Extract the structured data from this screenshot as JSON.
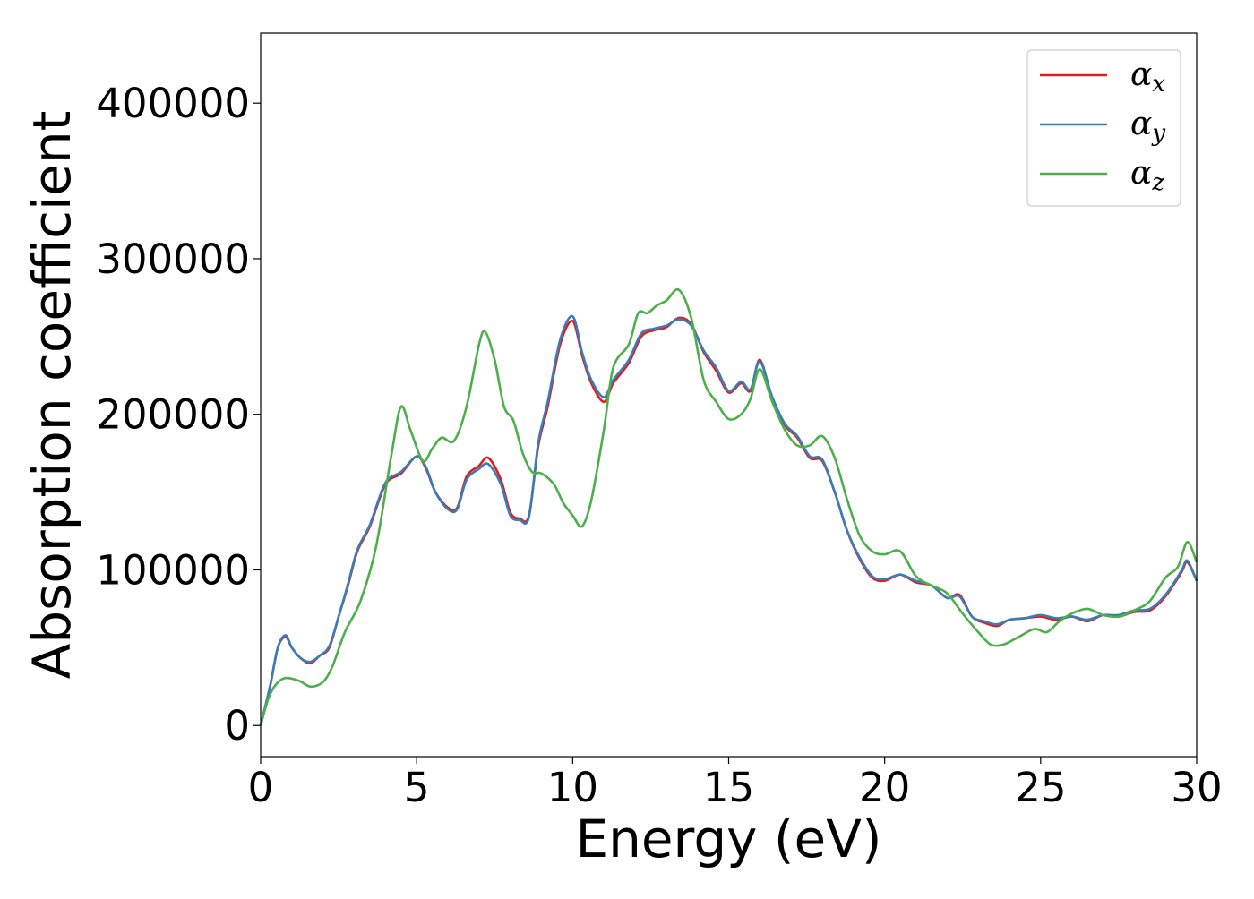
{
  "chart_data": {
    "type": "line",
    "title": "",
    "xlabel": "Energy (eV)",
    "ylabel": "Absorption coefficient",
    "xlim": [
      0,
      30
    ],
    "ylim": [
      -20000,
      445000
    ],
    "xticks": [
      0,
      5,
      10,
      15,
      20,
      25,
      30
    ],
    "xtick_labels": [
      "0",
      "5",
      "10",
      "15",
      "20",
      "25",
      "30"
    ],
    "yticks": [
      0,
      100000,
      200000,
      300000,
      400000
    ],
    "ytick_labels": [
      "0",
      "100000",
      "200000",
      "300000",
      "400000"
    ],
    "grid": false,
    "legend_position": "top-right",
    "series": [
      {
        "name": "αx",
        "name_base": "α",
        "name_sub": "x",
        "color": "#e41a1c",
        "x": [
          0,
          0.3,
          0.55,
          0.8,
          1.0,
          1.3,
          1.6,
          1.9,
          2.2,
          2.5,
          2.8,
          3.1,
          3.5,
          4.0,
          4.5,
          5.0,
          5.3,
          5.6,
          6.0,
          6.3,
          6.6,
          7.0,
          7.3,
          7.7,
          8.0,
          8.3,
          8.6,
          8.9,
          9.2,
          9.6,
          10.0,
          10.3,
          10.6,
          11.0,
          11.3,
          11.8,
          12.2,
          12.6,
          13.0,
          13.4,
          13.8,
          14.2,
          14.6,
          15.0,
          15.4,
          15.7,
          16.0,
          16.4,
          16.8,
          17.2,
          17.6,
          18.0,
          18.4,
          18.8,
          19.2,
          19.6,
          20.0,
          20.5,
          21.0,
          21.5,
          22.0,
          22.4,
          22.8,
          23.2,
          23.6,
          24.0,
          24.5,
          25.0,
          25.5,
          26.0,
          26.5,
          27.0,
          27.5,
          28.0,
          28.5,
          29.0,
          29.5,
          29.7,
          30.0
        ],
        "y": [
          0,
          25000,
          50000,
          57000,
          50000,
          43000,
          40000,
          45000,
          50000,
          70000,
          90000,
          112000,
          128000,
          155000,
          162000,
          173000,
          165000,
          150000,
          140000,
          140000,
          160000,
          167000,
          172000,
          158000,
          137000,
          133000,
          135000,
          180000,
          205000,
          245000,
          260000,
          238000,
          220000,
          208000,
          220000,
          233000,
          250000,
          254000,
          256000,
          262000,
          258000,
          240000,
          228000,
          214000,
          220000,
          215000,
          235000,
          210000,
          193000,
          185000,
          172000,
          170000,
          150000,
          125000,
          107000,
          95000,
          93000,
          97000,
          92000,
          90000,
          82000,
          84000,
          70000,
          66000,
          64000,
          68000,
          69000,
          70000,
          68000,
          70000,
          67000,
          71000,
          70000,
          73000,
          74000,
          83000,
          98000,
          105000,
          93000
        ]
      },
      {
        "name": "αy",
        "name_base": "α",
        "name_sub": "y",
        "color": "#377eb8",
        "x": [
          0,
          0.3,
          0.55,
          0.8,
          1.0,
          1.3,
          1.6,
          1.9,
          2.2,
          2.5,
          2.8,
          3.1,
          3.5,
          4.0,
          4.5,
          5.0,
          5.3,
          5.6,
          6.0,
          6.3,
          6.6,
          7.0,
          7.3,
          7.7,
          8.0,
          8.3,
          8.6,
          8.9,
          9.2,
          9.6,
          10.0,
          10.3,
          10.6,
          11.0,
          11.3,
          11.8,
          12.2,
          12.6,
          13.0,
          13.4,
          13.8,
          14.2,
          14.6,
          15.0,
          15.4,
          15.7,
          16.0,
          16.4,
          16.8,
          17.2,
          17.6,
          18.0,
          18.4,
          18.8,
          19.2,
          19.6,
          20.0,
          20.5,
          21.0,
          21.5,
          22.0,
          22.4,
          22.8,
          23.2,
          23.6,
          24.0,
          24.5,
          25.0,
          25.5,
          26.0,
          26.5,
          27.0,
          27.5,
          28.0,
          28.5,
          29.0,
          29.5,
          29.7,
          30.0
        ],
        "y": [
          0,
          25000,
          50000,
          58000,
          50000,
          43000,
          41000,
          45000,
          51000,
          70000,
          91000,
          113000,
          129000,
          156000,
          163000,
          173000,
          166000,
          150000,
          139000,
          139000,
          158000,
          165000,
          168000,
          155000,
          135000,
          132000,
          134000,
          182000,
          208000,
          248000,
          263000,
          240000,
          222000,
          211000,
          222000,
          235000,
          252000,
          255000,
          257000,
          261000,
          257000,
          241000,
          230000,
          215000,
          221000,
          216000,
          234000,
          211000,
          194000,
          186000,
          173000,
          171000,
          150000,
          125000,
          108000,
          96000,
          94000,
          97000,
          93000,
          90000,
          82000,
          83000,
          70000,
          67000,
          65000,
          68000,
          69000,
          71000,
          69000,
          70000,
          68000,
          71000,
          71000,
          74000,
          75000,
          84000,
          99000,
          106000,
          93000
        ]
      },
      {
        "name": "αz",
        "name_base": "α",
        "name_sub": "z",
        "color": "#4daf4a",
        "x": [
          0,
          0.3,
          0.7,
          1.2,
          1.6,
          2.0,
          2.3,
          2.7,
          3.2,
          3.7,
          4.2,
          4.5,
          4.8,
          5.2,
          5.5,
          5.8,
          6.2,
          6.6,
          7.0,
          7.2,
          7.5,
          7.8,
          8.1,
          8.4,
          8.7,
          9.0,
          9.4,
          9.7,
          10.0,
          10.3,
          10.6,
          11.0,
          11.3,
          11.8,
          12.1,
          12.4,
          12.7,
          13.0,
          13.4,
          13.8,
          14.2,
          14.6,
          15.0,
          15.4,
          15.7,
          16.0,
          16.4,
          16.8,
          17.2,
          17.6,
          18.0,
          18.4,
          18.8,
          19.2,
          19.6,
          20.0,
          20.5,
          21.0,
          21.5,
          22.0,
          22.5,
          23.0,
          23.4,
          23.8,
          24.3,
          24.8,
          25.2,
          25.6,
          26.0,
          26.5,
          27.0,
          27.5,
          28.0,
          28.5,
          29.0,
          29.4,
          29.7,
          30.0
        ],
        "y": [
          0,
          20000,
          30000,
          29000,
          25000,
          28000,
          38000,
          60000,
          80000,
          115000,
          175000,
          205000,
          190000,
          170000,
          178000,
          185000,
          183000,
          205000,
          245000,
          253000,
          235000,
          205000,
          196000,
          175000,
          163000,
          162000,
          155000,
          143000,
          135000,
          128000,
          145000,
          190000,
          230000,
          245000,
          265000,
          265000,
          270000,
          273000,
          280000,
          262000,
          222000,
          208000,
          197000,
          200000,
          210000,
          229000,
          208000,
          190000,
          180000,
          180000,
          186000,
          172000,
          145000,
          122000,
          112000,
          110000,
          112000,
          96000,
          90000,
          85000,
          72000,
          60000,
          52000,
          52000,
          57000,
          62000,
          60000,
          67000,
          72000,
          75000,
          71000,
          70000,
          74000,
          80000,
          95000,
          102000,
          118000,
          105000
        ]
      }
    ]
  }
}
